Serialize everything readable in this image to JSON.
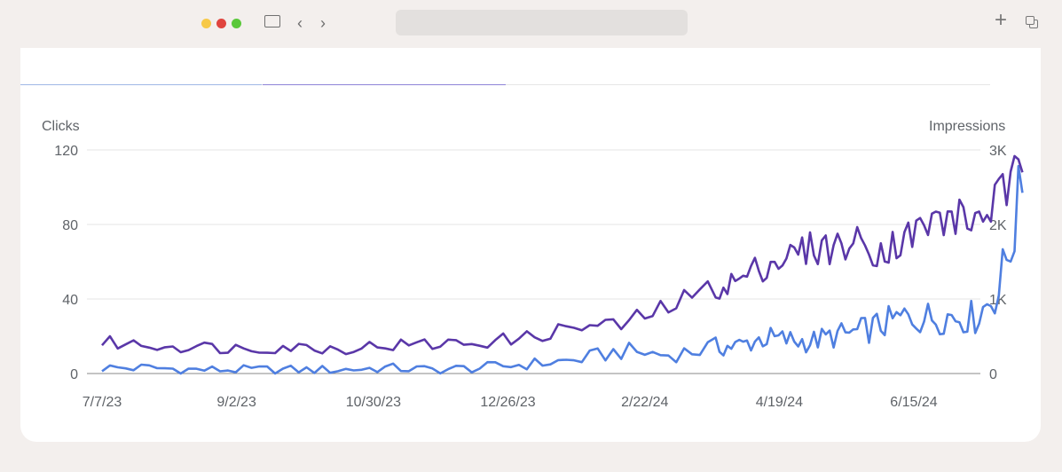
{
  "window": {
    "traffic_lights": [
      "#f7c948",
      "#e0443e",
      "#5ac83a"
    ],
    "icons": [
      "sidebar-icon",
      "chevron-left-icon",
      "chevron-right-icon",
      "plus-icon",
      "tabs-overview-icon"
    ],
    "url": ""
  },
  "chart_data": {
    "type": "line",
    "ylabel_left": "Clicks",
    "ylabel_right": "Impressions",
    "x_tick_labels": [
      "7/7/23",
      "9/2/23",
      "10/30/23",
      "12/26/23",
      "2/22/24",
      "4/19/24",
      "6/15/24"
    ],
    "y_left_ticks": [
      "0",
      "40",
      "80",
      "120"
    ],
    "y_right_ticks": [
      "0",
      "1K",
      "2K",
      "3K"
    ],
    "ylim_left": [
      0,
      120
    ],
    "ylim_right": [
      0,
      3000
    ],
    "x_range": [
      "7/7/23",
      "7/31/24"
    ],
    "grid": true,
    "series": [
      {
        "axis": "left",
        "color": "#4f7fe0",
        "x": [
          "7/7/23",
          "7/27/23",
          "8/16/23",
          "9/5/23",
          "9/25/23",
          "10/15/23",
          "11/4/23",
          "11/24/23",
          "12/14/23",
          "1/3/24",
          "1/23/24",
          "2/12/24",
          "3/3/24",
          "3/23/24",
          "4/2/24",
          "4/12/24",
          "4/22/24",
          "5/2/24",
          "5/12/24",
          "5/22/24",
          "6/1/24",
          "6/11/24",
          "6/21/24",
          "7/1/24",
          "7/11/24",
          "7/21/24",
          "7/31/24"
        ],
        "values": [
          3,
          3,
          2,
          2,
          2,
          2,
          3,
          2,
          3,
          5,
          7,
          12,
          10,
          14,
          15,
          19,
          18,
          17,
          20,
          22,
          26,
          30,
          30,
          31,
          30,
          45,
          97
        ]
      },
      {
        "axis": "right",
        "color": "#5a37a8",
        "x": [
          "7/7/23",
          "7/27/23",
          "8/16/23",
          "9/5/23",
          "9/25/23",
          "10/15/23",
          "11/4/23",
          "11/24/23",
          "12/14/23",
          "1/3/24",
          "1/23/24",
          "2/12/24",
          "3/3/24",
          "3/23/24",
          "4/2/24",
          "4/12/24",
          "4/22/24",
          "5/2/24",
          "5/12/24",
          "5/22/24",
          "6/1/24",
          "6/11/24",
          "6/21/24",
          "7/1/24",
          "7/11/24",
          "7/21/24",
          "7/31/24"
        ],
        "values": [
          420,
          380,
          360,
          340,
          360,
          330,
          380,
          390,
          420,
          480,
          620,
          650,
          900,
          1150,
          1250,
          1450,
          1550,
          1680,
          1700,
          1750,
          1650,
          1800,
          2000,
          2100,
          2050,
          2350,
          2700
        ]
      }
    ]
  }
}
